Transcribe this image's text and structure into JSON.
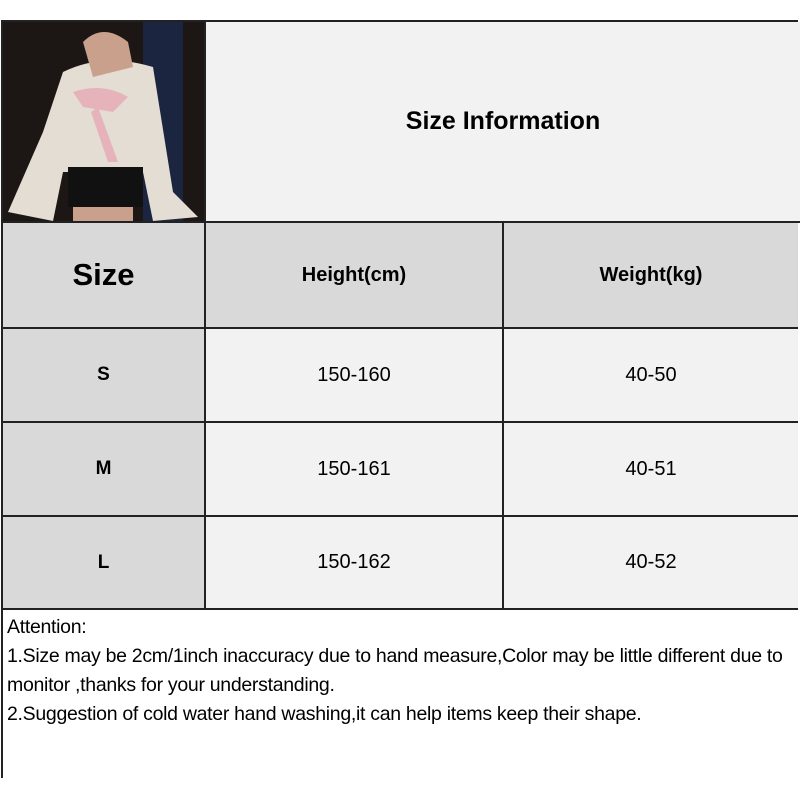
{
  "title": "Size Information",
  "product_image": {
    "alt": "woman wearing white lace off-shoulder top with pink bow and black shorts"
  },
  "table": {
    "headers": [
      "Size",
      "Height(cm)",
      "Weight(kg)"
    ],
    "rows": [
      {
        "size": "S",
        "height": "150-160",
        "weight": "40-50"
      },
      {
        "size": "M",
        "height": "150-161",
        "weight": "40-51"
      },
      {
        "size": "L",
        "height": "150-162",
        "weight": "40-52"
      }
    ]
  },
  "attention": {
    "heading": "Attention:",
    "lines": [
      "1.Size may be 2cm/1inch inaccuracy due to hand measure,Color may be little different due to monitor ,thanks for your understanding.",
      "2.Suggestion of cold water hand washing,it can help items keep their shape."
    ]
  },
  "colors": {
    "header_bg": "#d9d9d9",
    "cell_bg": "#f2f2f2",
    "border": "#222222"
  }
}
